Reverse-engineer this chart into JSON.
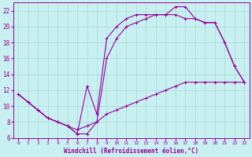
{
  "xlabel": "Windchill (Refroidissement éolien,°C)",
  "bg_color": "#c8f0f0",
  "grid_color": "#a8d8d8",
  "line_color": "#990099",
  "xlim": [
    -0.5,
    23.5
  ],
  "ylim": [
    6,
    23
  ],
  "xticks": [
    0,
    1,
    2,
    3,
    4,
    5,
    6,
    7,
    8,
    9,
    10,
    11,
    12,
    13,
    14,
    15,
    16,
    17,
    18,
    19,
    20,
    21,
    22,
    23
  ],
  "yticks": [
    6,
    8,
    10,
    12,
    14,
    16,
    18,
    20,
    22
  ],
  "line1_x": [
    0,
    1,
    2,
    3,
    4,
    5,
    6,
    7,
    8,
    9,
    10,
    11,
    12,
    13,
    14,
    15,
    16,
    17,
    18,
    19,
    20,
    21,
    22,
    23
  ],
  "line1_y": [
    11.5,
    10.5,
    9.5,
    8.5,
    8.0,
    7.5,
    7.0,
    7.5,
    8.0,
    9.0,
    9.5,
    10.0,
    10.5,
    11.0,
    11.5,
    12.0,
    12.5,
    13.0,
    13.0,
    13.0,
    13.0,
    13.0,
    13.0,
    13.0
  ],
  "line2_x": [
    0,
    1,
    2,
    3,
    4,
    5,
    6,
    7,
    8,
    9,
    10,
    11,
    12,
    13,
    14,
    15,
    16,
    17,
    18,
    19,
    20,
    21,
    22,
    23
  ],
  "line2_y": [
    11.5,
    10.5,
    9.5,
    8.5,
    8.0,
    7.5,
    6.5,
    12.5,
    9.0,
    18.5,
    20.0,
    21.0,
    21.5,
    21.5,
    21.5,
    21.5,
    22.5,
    22.5,
    21.0,
    20.5,
    20.5,
    18.0,
    15.0,
    13.0
  ],
  "line3_x": [
    0,
    1,
    2,
    3,
    4,
    5,
    6,
    7,
    8,
    9,
    10,
    11,
    12,
    13,
    14,
    15,
    16,
    17,
    18,
    19,
    20,
    21,
    22,
    23
  ],
  "line3_y": [
    11.5,
    10.5,
    9.5,
    8.5,
    8.0,
    7.5,
    6.5,
    6.5,
    8.0,
    16.0,
    18.5,
    20.0,
    20.5,
    21.0,
    21.5,
    21.5,
    21.5,
    21.0,
    21.0,
    20.5,
    20.5,
    18.0,
    15.0,
    13.0
  ]
}
